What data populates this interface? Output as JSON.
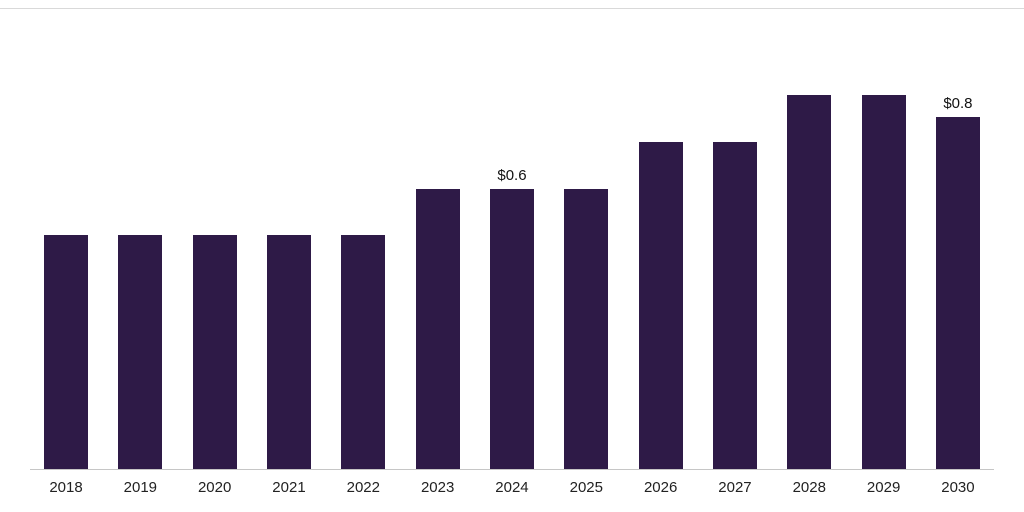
{
  "chart_data": {
    "type": "bar",
    "title": "",
    "xlabel": "",
    "ylabel": "",
    "categories": [
      "2018",
      "2019",
      "2020",
      "2021",
      "2022",
      "2023",
      "2024",
      "2025",
      "2026",
      "2027",
      "2028",
      "2029",
      "2030"
    ],
    "values": [
      0.5,
      0.5,
      0.5,
      0.5,
      0.5,
      0.6,
      0.6,
      0.6,
      0.7,
      0.7,
      0.8,
      0.8,
      0.8
    ],
    "data_labels": {
      "2024": "$0.6",
      "2030": "$0.8"
    },
    "ylim": [
      0,
      0.8
    ],
    "grid": false,
    "legend_position": "none",
    "bar_color": "#2e1a47",
    "axis_color": "#c6c6c6",
    "tick_label_color": "#222222",
    "value_label_color": "#111111"
  }
}
